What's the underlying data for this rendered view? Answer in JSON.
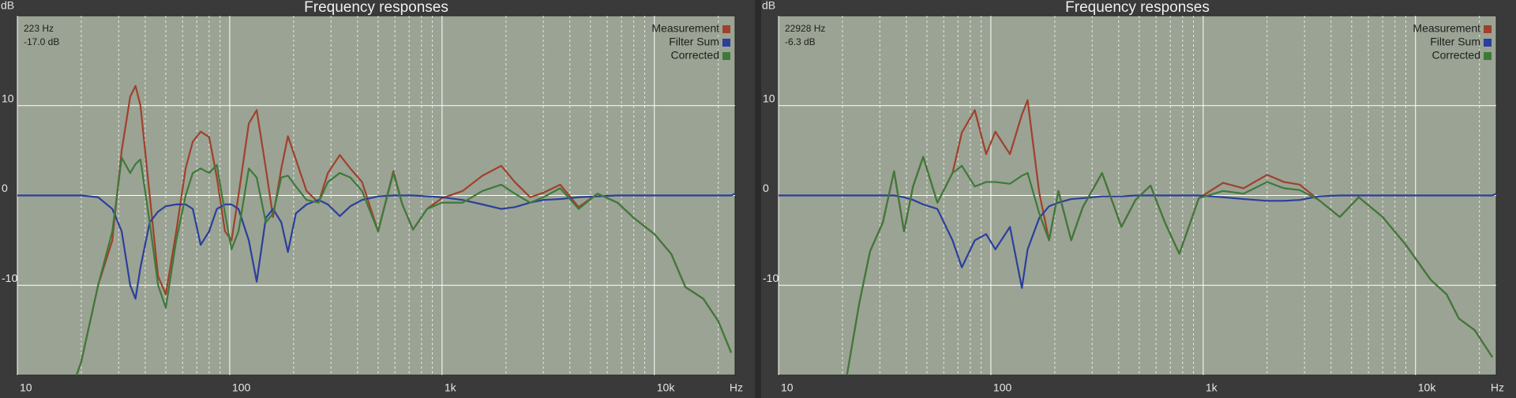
{
  "chart_data": [
    {
      "type": "line",
      "title": "Frequency responses",
      "y_label": "dB",
      "x_label": "Hz",
      "readout": [
        "223 Hz",
        "-17.0 dB"
      ],
      "xscale": "log",
      "xlim": [
        10,
        24000
      ],
      "ylim": [
        -20,
        20
      ],
      "xticks": [
        10,
        100,
        {
          "value": 1000,
          "label": "1k"
        },
        {
          "value": 10000,
          "label": "10k"
        }
      ],
      "xminorticks": [
        20,
        30,
        40,
        50,
        60,
        70,
        80,
        90,
        200,
        300,
        400,
        500,
        600,
        700,
        800,
        900,
        2000,
        3000,
        4000,
        5000,
        6000,
        7000,
        8000,
        9000,
        20000
      ],
      "yticks": [
        10,
        0,
        -10
      ],
      "grid": true,
      "legend": "upper right",
      "background": "#9ba394",
      "x": [
        10,
        19,
        20,
        24,
        28,
        31,
        34,
        36,
        38,
        42,
        46,
        50,
        56,
        62,
        67,
        73,
        80,
        87,
        95,
        102,
        110,
        123,
        134,
        148,
        160,
        175,
        188,
        205,
        230,
        262,
        290,
        330,
        370,
        420,
        500,
        590,
        650,
        730,
        850,
        1000,
        1250,
        1550,
        1900,
        2200,
        2600,
        3000,
        3600,
        4400,
        5400,
        6700,
        8000,
        10000,
        12000,
        14000,
        17000,
        20000,
        23000,
        24000
      ],
      "series": [
        {
          "name": "Measurement",
          "color": "#a0402c",
          "values": [
            null,
            -20,
            -18.5,
            -10,
            -5,
            5,
            11,
            12.2,
            10,
            0,
            -9,
            -11,
            -4,
            3,
            6,
            7.1,
            6.5,
            2,
            -4,
            -5,
            0,
            8,
            9.5,
            3,
            -2.4,
            3,
            6.6,
            4,
            0.5,
            -0.8,
            2.5,
            4.5,
            3,
            1.5,
            -4,
            2.7,
            -1,
            -3.8,
            -1.5,
            -0.3,
            0.5,
            2.2,
            3.3,
            1.5,
            -0.2,
            0.3,
            1.2,
            -1.3,
            0.2,
            -0.8,
            -2.5,
            -4.3,
            -6.5,
            -10.2,
            -11.5,
            -14,
            -17.5,
            null
          ]
        },
        {
          "name": "Filter Sum",
          "color": "#2b3f9c",
          "values": [
            0,
            0,
            0,
            -0.2,
            -1.5,
            -4,
            -10,
            -11.5,
            -8,
            -3,
            -1.8,
            -1.2,
            -1,
            -1,
            -1.5,
            -5.5,
            -4,
            -1.5,
            -1,
            -1,
            -1.5,
            -5,
            -9.6,
            -2.5,
            -1.5,
            -3,
            -6.3,
            -2,
            -1,
            -0.5,
            -1,
            -2.3,
            -1.2,
            -0.5,
            -0.1,
            0,
            0,
            0,
            -0.1,
            -0.2,
            -0.5,
            -1,
            -1.5,
            -1.3,
            -0.8,
            -0.5,
            -0.4,
            -0.2,
            -0.1,
            0,
            0,
            0,
            0,
            0,
            0,
            0,
            0,
            0.2
          ]
        },
        {
          "name": "Corrected",
          "color": "#3d7a3a",
          "values": [
            null,
            -20,
            -18.5,
            -10,
            -4,
            4.2,
            2.5,
            3.5,
            4,
            -3,
            -10,
            -12.5,
            -5,
            0,
            2.5,
            3,
            2.5,
            3.4,
            -2,
            -6,
            -4,
            3,
            2,
            -3,
            -2,
            2,
            2.2,
            1,
            -0.5,
            -0.8,
            1.5,
            2.5,
            2,
            0.5,
            -4,
            2.5,
            -1,
            -3.8,
            -1.5,
            -0.8,
            -0.8,
            0.5,
            1.2,
            0.2,
            -0.8,
            -0.2,
            0.8,
            -1.5,
            0.2,
            -0.8,
            -2.5,
            -4.3,
            -6.5,
            -10.2,
            -11.5,
            -14,
            -17.5,
            null
          ]
        }
      ]
    },
    {
      "type": "line",
      "title": "Frequency responses",
      "y_label": "dB",
      "x_label": "Hz",
      "readout": [
        "22928 Hz",
        "-6.3 dB"
      ],
      "xscale": "log",
      "xlim": [
        10,
        24000
      ],
      "ylim": [
        -20,
        20
      ],
      "xticks": [
        10,
        100,
        {
          "value": 1000,
          "label": "1k"
        },
        {
          "value": 10000,
          "label": "10k"
        }
      ],
      "xminorticks": [
        20,
        30,
        40,
        50,
        60,
        70,
        80,
        90,
        200,
        300,
        400,
        500,
        600,
        700,
        800,
        900,
        2000,
        3000,
        4000,
        5000,
        6000,
        7000,
        8000,
        9000,
        20000
      ],
      "yticks": [
        10,
        0,
        -10
      ],
      "grid": true,
      "legend": "upper right",
      "background": "#9ba394",
      "x": [
        10,
        21,
        24,
        27,
        31,
        35,
        39,
        43,
        48,
        56,
        66,
        73,
        84,
        95,
        105,
        123,
        140,
        149,
        169,
        188,
        208,
        239,
        271,
        334,
        412,
        480,
        565,
        660,
        772,
        954,
        1240,
        1550,
        2000,
        2400,
        2850,
        3500,
        4400,
        5400,
        7000,
        9000,
        11800,
        14000,
        16000,
        19000,
        23000,
        24000
      ],
      "series": [
        {
          "name": "Measurement",
          "color": "#a0402c",
          "values": [
            null,
            -20,
            -12,
            -6.2,
            -3,
            2.7,
            -4,
            1,
            4.3,
            -0.8,
            2.5,
            7,
            9.5,
            4.6,
            7.1,
            4.6,
            9,
            10.6,
            0.3,
            -5,
            0.5,
            -5,
            -1.3,
            2.5,
            -3.5,
            -0.5,
            1.1,
            -3,
            -6.5,
            -0.3,
            1.4,
            0.8,
            2.3,
            1.5,
            1.2,
            -0.5,
            -2.4,
            -0.2,
            -2.4,
            -5.5,
            -9.4,
            -11,
            -13.7,
            -15,
            -18,
            null
          ]
        },
        {
          "name": "Filter Sum",
          "color": "#2b3f9c",
          "values": [
            0,
            0,
            0,
            0,
            0,
            0,
            -0.2,
            -0.5,
            -1,
            -1.5,
            -5,
            -8,
            -5,
            -4.3,
            -6,
            -3.5,
            -10.3,
            -6,
            -2.5,
            -1.2,
            -0.8,
            -0.4,
            -0.3,
            -0.1,
            -0.1,
            0,
            0,
            0,
            0,
            0,
            -0.2,
            -0.4,
            -0.6,
            -0.6,
            -0.5,
            -0.1,
            0,
            0,
            0,
            0,
            0,
            0,
            0,
            0,
            0,
            0.2
          ]
        },
        {
          "name": "Corrected",
          "color": "#3d7a3a",
          "values": [
            null,
            -20,
            -12,
            -6.2,
            -3,
            2.7,
            -4,
            1,
            4.3,
            -0.8,
            2.5,
            3.3,
            1,
            1.5,
            1.5,
            1.3,
            2.2,
            2.5,
            -2,
            -5,
            0.5,
            -5,
            -1.3,
            2.5,
            -3.5,
            -0.5,
            1.1,
            -3,
            -6.5,
            -0.3,
            0.5,
            0.2,
            1.5,
            0.8,
            0.6,
            -0.5,
            -2.4,
            -0.2,
            -2.4,
            -5.5,
            -9.4,
            -11,
            -13.7,
            -15,
            -18,
            null
          ]
        }
      ]
    }
  ]
}
